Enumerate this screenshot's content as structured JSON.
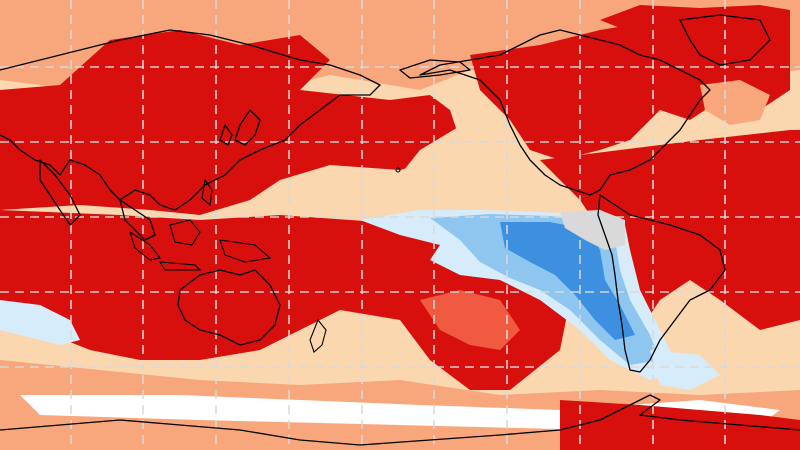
{
  "map": {
    "kind": "global temperature anomaly map, Pacific-centered equirectangular",
    "palette": {
      "strong_warm": "#d7100e",
      "warm": "#f05a40",
      "mild_warm": "#f8a77c",
      "slight_warm": "#fbd7b0",
      "neutral": "#ffffff",
      "near_zero": "#d9d9d9",
      "slight_cool": "#d6ecfa",
      "cool": "#8ec6f0",
      "strong_cool": "#3d8fe0"
    },
    "grid": {
      "longitude_lines": 10,
      "latitude_lines": 5,
      "style": "dashed",
      "color": "#d9d9d9"
    },
    "coastline_color": "#000000"
  }
}
